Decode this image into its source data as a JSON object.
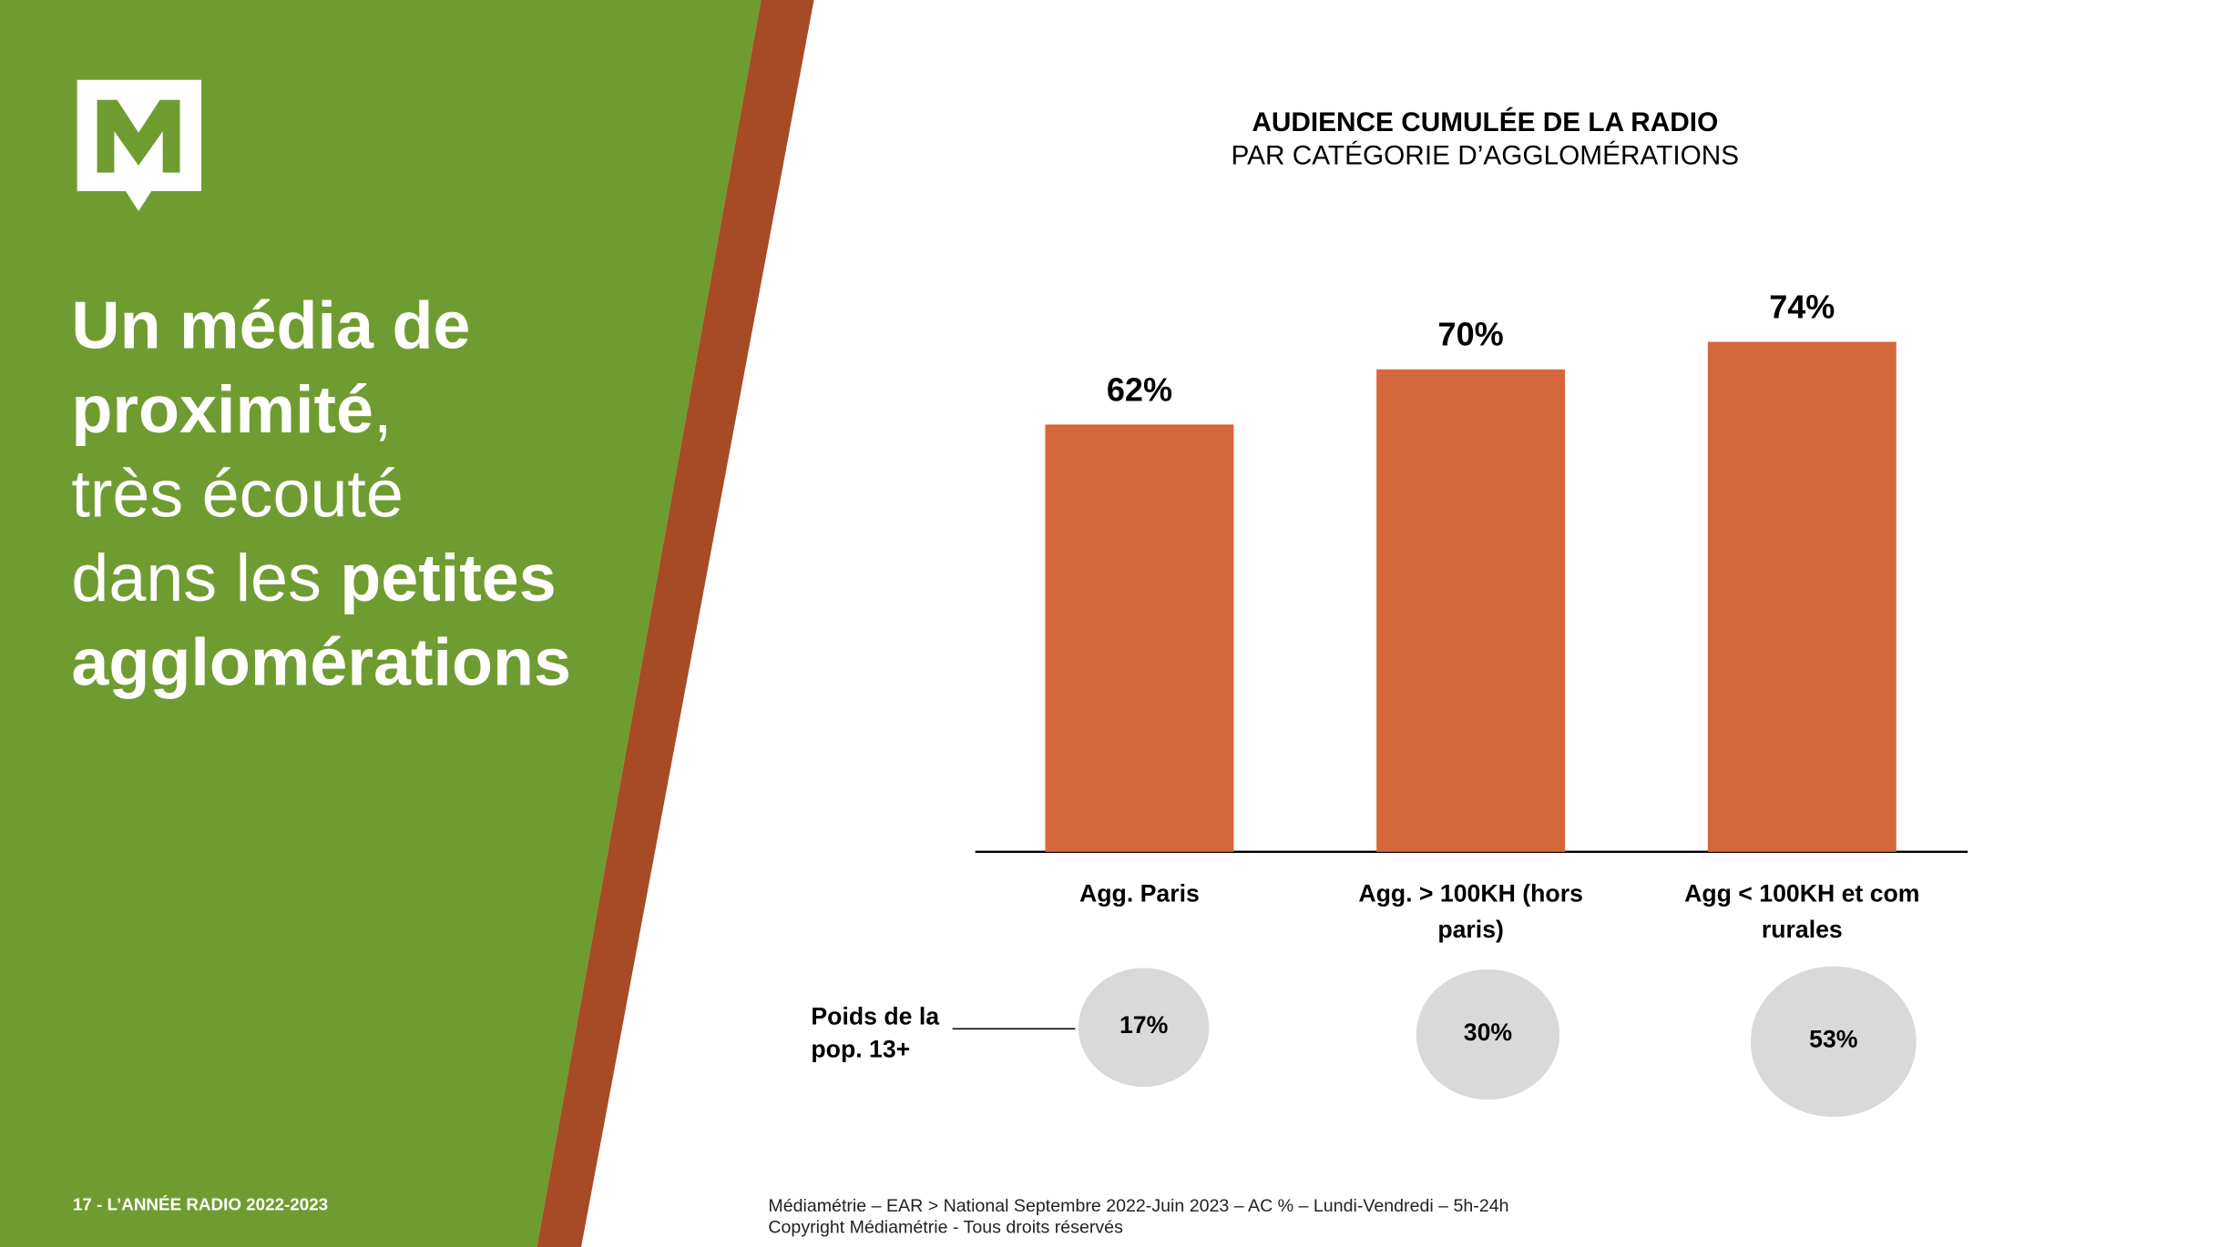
{
  "logo": {
    "letter": "M"
  },
  "headline": {
    "lines": [
      [
        {
          "text": "Un média de",
          "bold": true
        }
      ],
      [
        {
          "text": "proximité",
          "bold": true
        },
        {
          "text": ",",
          "bold": false
        }
      ],
      [
        {
          "text": "très écouté",
          "bold": false
        }
      ],
      [
        {
          "text": "dans les ",
          "bold": false
        },
        {
          "text": "petites",
          "bold": true
        }
      ],
      [
        {
          "text": "agglomérations",
          "bold": true
        }
      ]
    ]
  },
  "footer": {
    "page": "17 - L’ANNÉE RADIO 2022-2023",
    "source": [
      "Médiamétrie – EAR > National Septembre 2022-Juin 2023 – AC % – Lundi-Vendredi – 5h-24h",
      "Copyright Médiamétrie - Tous droits réservés"
    ]
  },
  "chart_data": {
    "type": "bar",
    "title": "AUDIENCE CUMULÉE DE LA RADIO",
    "subtitle": "PAR CATÉGORIE D’AGGLOMÉRATIONS",
    "categories": [
      "Agg. Paris",
      "Agg. > 100KH (hors paris)",
      "Agg < 100KH et com rurales"
    ],
    "values": [
      62,
      70,
      74
    ],
    "value_labels": [
      "62%",
      "70%",
      "74%"
    ],
    "color": "#d5683b",
    "weights": {
      "label": "Poids de la pop. 13+",
      "values": [
        17,
        30,
        53
      ],
      "value_labels": [
        "17%",
        "30%",
        "53%"
      ],
      "color": "#d9d9d9"
    }
  }
}
